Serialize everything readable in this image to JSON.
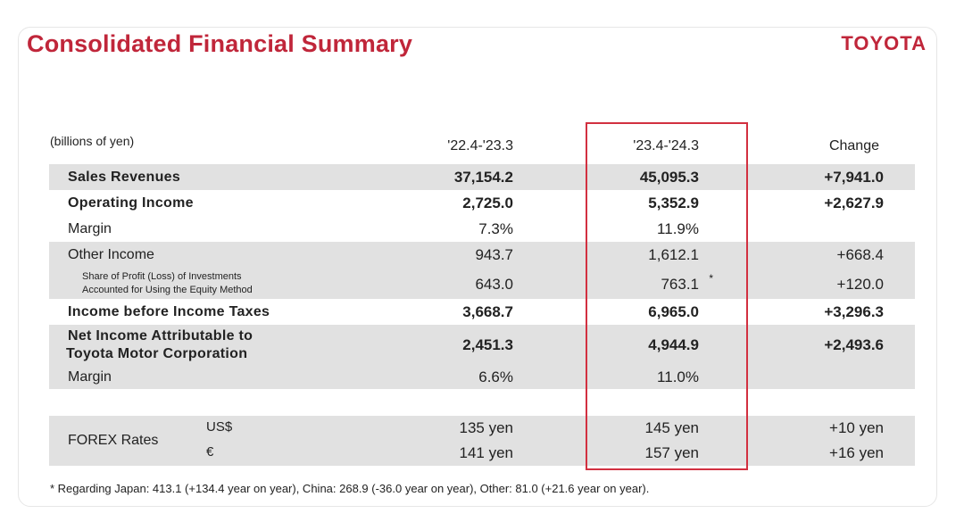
{
  "title": "Consolidated Financial Summary",
  "logo": "TOYOTA",
  "unit": "(billions of yen)",
  "columns": [
    "'22.4-'23.3",
    "'23.4-'24.3",
    "Change"
  ],
  "rows": [
    {
      "label": "Sales Revenues",
      "v1": "37,154.2",
      "v2": "45,095.3",
      "change": "+7,941.0"
    },
    {
      "label": "Operating Income",
      "v1": "2,725.0",
      "v2": "5,352.9",
      "change": "+2,627.9"
    },
    {
      "label": "Margin",
      "v1": "7.3%",
      "v2": "11.9%",
      "change": ""
    },
    {
      "label": "Other Income",
      "v1": "943.7",
      "v2": "1,612.1",
      "change": "+668.4"
    },
    {
      "label_line1": "Share of Profit (Loss) of Investments",
      "label_line2": "Accounted for Using the Equity Method",
      "v1": "643.0",
      "v2": "763.1",
      "marker": "*",
      "change": "+120.0"
    },
    {
      "label": "Income before Income Taxes",
      "v1": "3,668.7",
      "v2": "6,965.0",
      "change": "+3,296.3"
    },
    {
      "label_line1": "Net Income Attributable to",
      "label_line2": "Toyota Motor Corporation",
      "v1": "2,451.3",
      "v2": "4,944.9",
      "change": "+2,493.6"
    },
    {
      "label": "Margin",
      "v1": "6.6%",
      "v2": "11.0%",
      "change": ""
    }
  ],
  "forex": {
    "label": "FOREX Rates",
    "usd": {
      "currency": "US$",
      "v1": "135 yen",
      "v2": "145 yen",
      "change": "+10 yen"
    },
    "eur": {
      "currency": "€",
      "v1": "141 yen",
      "v2": "157 yen",
      "change": "+16 yen"
    }
  },
  "footnote": "*  Regarding Japan: 413.1 (+134.4 year on year), China: 268.9  (-36.0 year on year), Other: 81.0 (+21.6 year on year)."
}
